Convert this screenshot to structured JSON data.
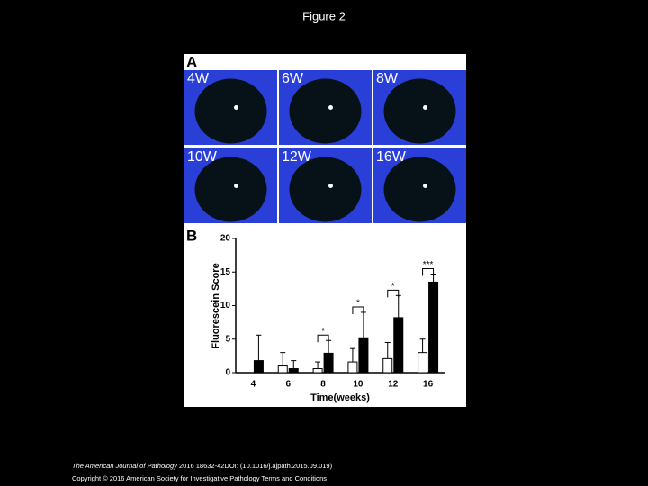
{
  "title": "Figure 2",
  "panel_a": {
    "label": "A",
    "images": [
      "4W",
      "6W",
      "8W",
      "10W",
      "12W",
      "16W"
    ]
  },
  "chart_data": {
    "type": "bar",
    "panel_label": "B",
    "y_label": "Fluorescein Score",
    "x_label": "Time(weeks)",
    "categories": [
      "4",
      "6",
      "8",
      "10",
      "12",
      "16"
    ],
    "series": [
      {
        "color": "#ffffff",
        "values": [
          0,
          1.0,
          0.6,
          1.6,
          2.1,
          3.0
        ],
        "errors": [
          0,
          2.0,
          1.0,
          2.0,
          2.4,
          2.0
        ]
      },
      {
        "color": "#000000",
        "values": [
          1.8,
          0.6,
          2.9,
          5.2,
          8.2,
          13.5
        ],
        "errors": [
          3.8,
          1.2,
          1.9,
          3.8,
          3.3,
          1.2
        ]
      }
    ],
    "significance": [
      null,
      null,
      "*",
      "*",
      "*",
      "***"
    ],
    "ylim": [
      0,
      20
    ],
    "yticks": [
      0,
      5,
      10,
      15,
      20
    ]
  },
  "footer": {
    "journal": "The American Journal of Pathology",
    "citation": "2016 18632-42DOI: (10.1016/j.ajpath.2015.09.019)",
    "copyright": "Copyright © 2016 American Society for Investigative Pathology",
    "link": "Terms and Conditions"
  }
}
